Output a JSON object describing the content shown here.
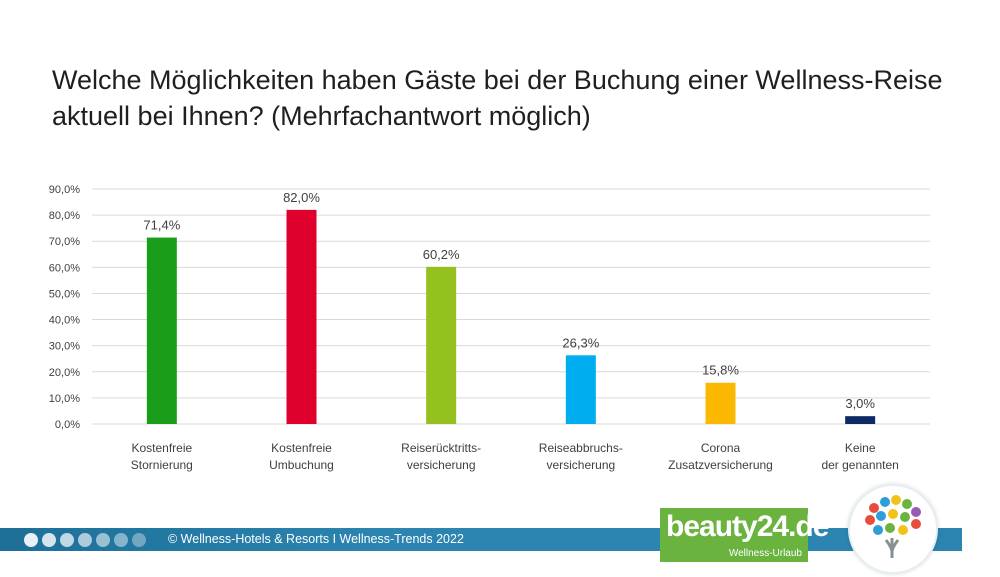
{
  "title": {
    "line1": "Welche Möglichkeiten haben Gäste bei der Buchung einer Wellness-Reise",
    "line2": "aktuell bei Ihnen? (Mehrfachantwort möglich)"
  },
  "chart_data": {
    "type": "bar",
    "title": "Welche Möglichkeiten haben Gäste bei der Buchung einer Wellness-Reise aktuell bei Ihnen? (Mehrfachantwort möglich)",
    "categories": [
      [
        "Kostenfreie",
        "Stornierung"
      ],
      [
        "Kostenfreie",
        "Umbuchung"
      ],
      [
        "Reiserücktritts-",
        "versicherung"
      ],
      [
        "Reiseabbruchs-",
        "versicherung"
      ],
      [
        "Corona",
        "Zusatzversicherung"
      ],
      [
        "Keine",
        "der genannten"
      ]
    ],
    "values": [
      71.4,
      82.0,
      60.2,
      26.3,
      15.8,
      3.0
    ],
    "value_labels": [
      "71,4%",
      "82,0%",
      "60,2%",
      "26,3%",
      "15,8%",
      "3,0%"
    ],
    "colors": [
      "#1a9e1a",
      "#e0002d",
      "#95c11e",
      "#00aeef",
      "#fbb800",
      "#0d2a66"
    ],
    "ylim": [
      0,
      90
    ],
    "yticks": [
      "0,0%",
      "10,0%",
      "20,0%",
      "30,0%",
      "40,0%",
      "50,0%",
      "60,0%",
      "70,0%",
      "80,0%",
      "90,0%"
    ],
    "grid": true,
    "xlabel": "",
    "ylabel": ""
  },
  "footer": {
    "text": "© Wellness-Hotels & Resorts I Wellness-Trends 2022",
    "dot_count": 7
  },
  "brand": {
    "name": "beauty24.de",
    "subtitle": "Wellness-Urlaub",
    "color": "#6ab33e"
  },
  "logo": {
    "icon": "tree-logo-icon",
    "dot_colors": [
      "#e84c3d",
      "#2c9fd9",
      "#f3c21a",
      "#6ab33e",
      "#9b59b6",
      "#e84c3d",
      "#2c9fd9",
      "#f3c21a",
      "#6ab33e",
      "#e84c3d",
      "#2c9fd9",
      "#6ab33e",
      "#f3c21a"
    ]
  }
}
